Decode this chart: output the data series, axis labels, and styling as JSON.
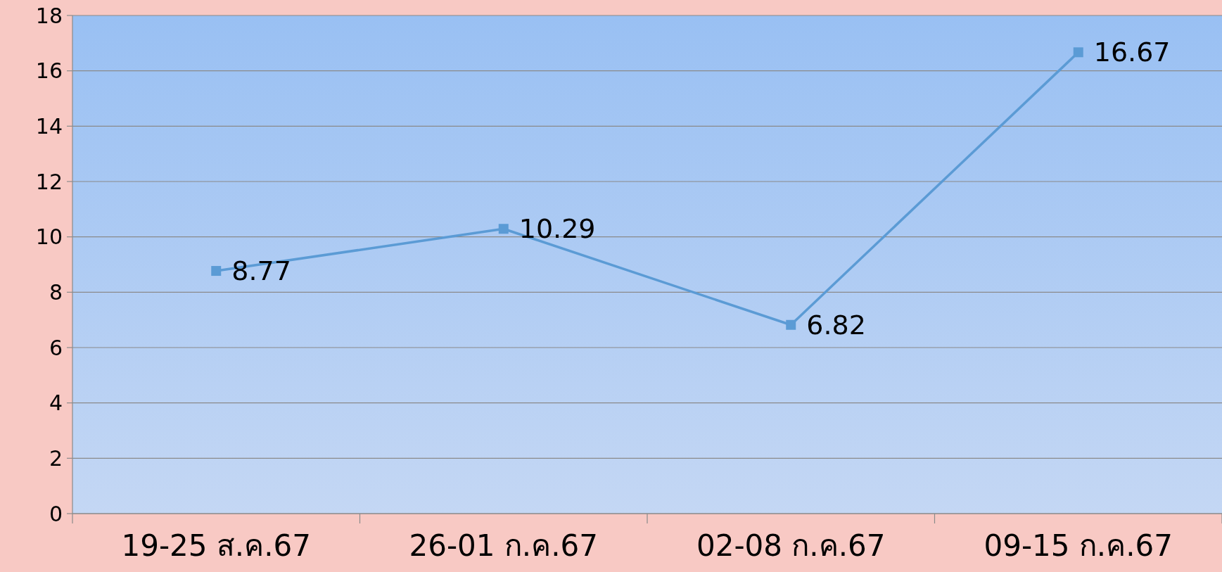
{
  "chart_data": {
    "type": "line",
    "categories": [
      "19-25 ส.ค.67",
      "26-01 ก.ค.67",
      "02-08 ก.ค.67",
      "09-15 ก.ค.67"
    ],
    "series": [
      {
        "color": "#5b9bd5",
        "values": [
          8.77,
          10.29,
          6.82,
          16.67
        ]
      }
    ],
    "ylim": [
      0,
      18
    ],
    "yticks": [
      0,
      2,
      4,
      6,
      8,
      10,
      12,
      14,
      16,
      18
    ],
    "grid": "y",
    "marker": "square",
    "line_style": "solid",
    "data_labels": true
  }
}
